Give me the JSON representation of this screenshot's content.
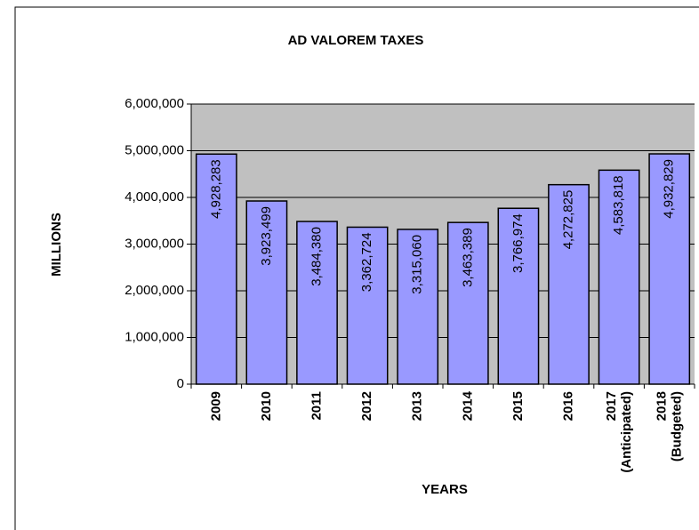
{
  "chart_data": {
    "type": "bar",
    "title": "AD VALOREM TAXES",
    "ylabel": "MILLIONS",
    "xlabel": "YEARS",
    "categories": [
      "2009",
      "2010",
      "2011",
      "2012",
      "2013",
      "2014",
      "2015",
      "2016",
      "2017 (Anticipated)",
      "2018 (Budgeted)"
    ],
    "values": [
      4928283,
      3923499,
      3484380,
      3362724,
      3315060,
      3463389,
      3766974,
      4272825,
      4583818,
      4932829
    ],
    "value_labels": [
      "4,928,283",
      "3,923,499",
      "3,484,380",
      "3,362,724",
      "3,315,060",
      "3,463,389",
      "3,766,974",
      "4,272,825",
      "4,583,818",
      "4,932,829"
    ],
    "color": "#9999ff",
    "ylim": [
      0,
      6000000
    ],
    "yticks": [
      0,
      {
        "value": 1000000,
        "label": "1,000,000"
      },
      {
        "value": 2000000,
        "label": "2,000,000"
      },
      {
        "value": 3000000,
        "label": "3,000,000"
      },
      {
        "value": 4000000,
        "label": "4,000,000"
      },
      {
        "value": 5000000,
        "label": "5,000,000"
      },
      {
        "value": 6000000,
        "label": "6,000,000"
      }
    ],
    "grid": true
  }
}
